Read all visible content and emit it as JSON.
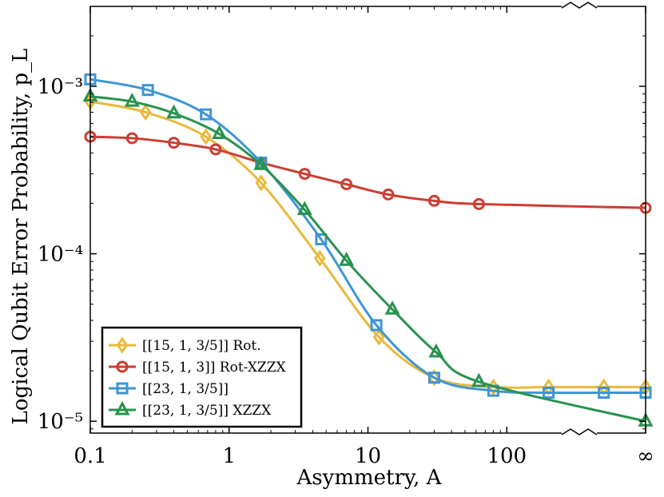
{
  "chart_data": {
    "type": "line",
    "xlabel": "Asymmetry, A",
    "ylabel": "Logical Qubit Error Probability, p_L",
    "xscale": "log",
    "yscale": "log",
    "xlim": [
      0.1,
      1000
    ],
    "ylim": [
      8.5e-06,
      0.003
    ],
    "x_ticks": [
      {
        "value": 0.1,
        "label": "0.1"
      },
      {
        "value": 1,
        "label": "1"
      },
      {
        "value": 10,
        "label": "10"
      },
      {
        "value": 100,
        "label": "100"
      },
      {
        "value": 1000,
        "label": "∞"
      }
    ],
    "y_ticks": [
      {
        "value": 1e-05,
        "label": "10⁻⁵"
      },
      {
        "value": 0.0001,
        "label": "10⁻⁴"
      },
      {
        "value": 0.001,
        "label": "10⁻³"
      }
    ],
    "axis_break": "x-axis break between 100 and ∞",
    "grid": false,
    "legend_position": "bottom-left",
    "series": [
      {
        "name": "[[15, 1, 3/5]] Rot.",
        "color": "#e9b93a",
        "marker": "diamond",
        "x": [
          0.1,
          0.25,
          0.68,
          1.7,
          4.5,
          12,
          30,
          80,
          200,
          500,
          1000
        ],
        "y": [
          0.00081,
          0.0007,
          0.0005,
          0.000265,
          9.4e-05,
          3.18e-05,
          1.82e-05,
          1.6e-05,
          1.6e-05,
          1.6e-05,
          1.6e-05
        ]
      },
      {
        "name": "[[15, 1, 3]] Rot-XZZX",
        "color": "#cc3d33",
        "marker": "circle",
        "x": [
          0.1,
          0.2,
          0.4,
          0.8,
          1.7,
          3.5,
          7,
          14,
          30,
          63,
          1000
        ],
        "y": [
          0.0005,
          0.00049,
          0.00046,
          0.00042,
          0.00035,
          0.0003,
          0.00026,
          0.000226,
          0.000207,
          0.000198,
          0.000188
        ]
      },
      {
        "name": "[[23, 1, 3/5]]",
        "color": "#3e95d5",
        "marker": "square",
        "x": [
          0.1,
          0.26,
          0.68,
          1.7,
          4.6,
          11.5,
          30,
          80,
          200,
          500,
          1000
        ],
        "y": [
          0.0011,
          0.00095,
          0.00068,
          0.00035,
          0.000122,
          3.75e-05,
          1.82e-05,
          1.52e-05,
          1.48e-05,
          1.48e-05,
          1.48e-05
        ]
      },
      {
        "name": "[[23, 1, 3/5]] XZZX",
        "color": "#28924d",
        "marker": "triangle",
        "x": [
          0.1,
          0.2,
          0.4,
          0.85,
          1.7,
          3.5,
          7,
          15,
          31,
          63,
          1000
        ],
        "y": [
          0.00087,
          0.00081,
          0.00069,
          0.00052,
          0.00034,
          0.000183,
          9.1e-05,
          4.65e-05,
          2.58e-05,
          1.72e-05,
          1e-05
        ]
      }
    ]
  }
}
